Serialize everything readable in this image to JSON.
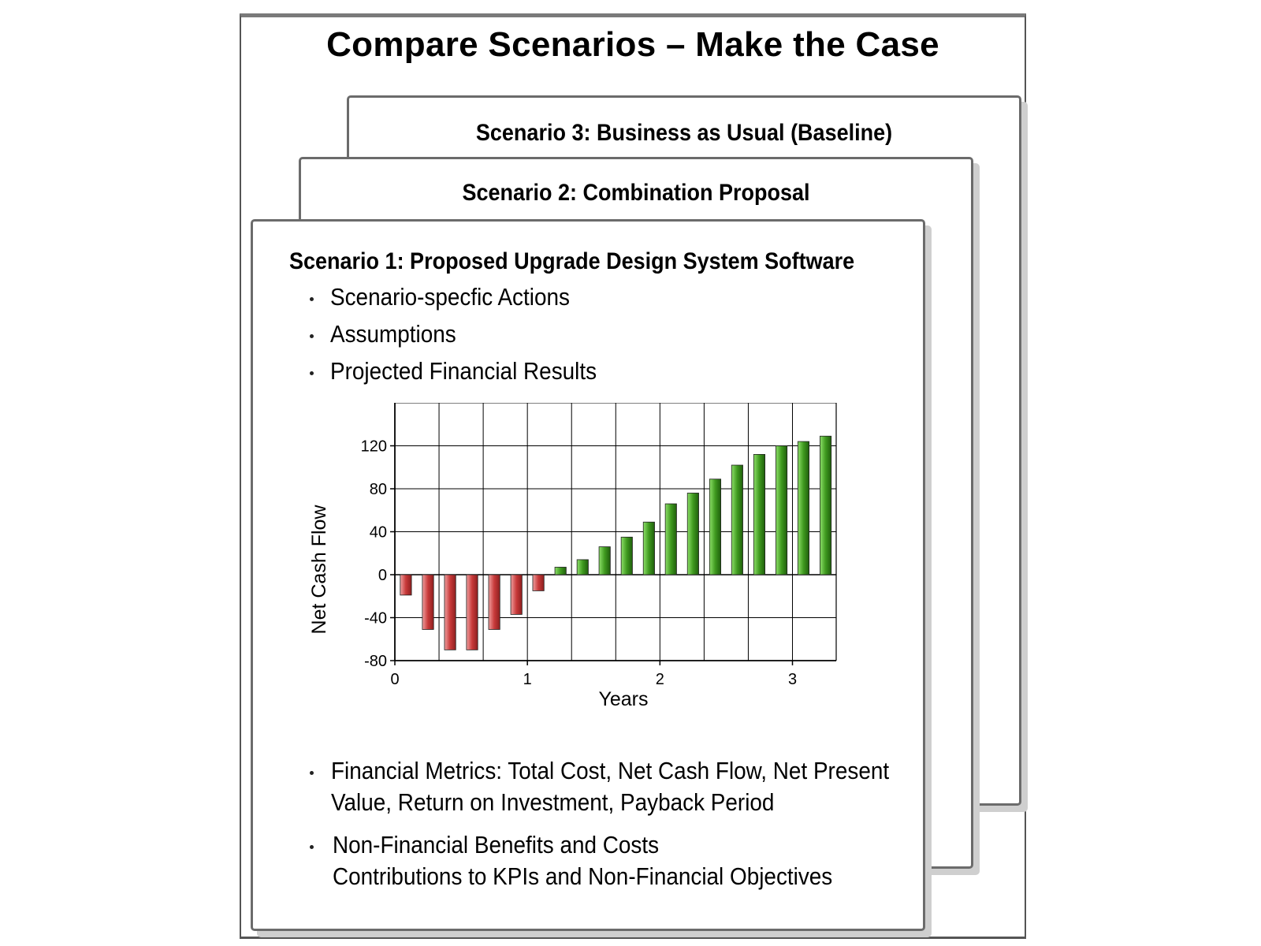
{
  "title": "Compare Scenarios – Make the Case",
  "scenarios": [
    {
      "title": "Scenario 1: Proposed Upgrade Design System Software"
    },
    {
      "title": "Scenario 2: Combination Proposal"
    },
    {
      "title": "Scenario 3: Business as Usual (Baseline)"
    }
  ],
  "bullets_top": [
    "Scenario-specfic Actions",
    "Assumptions",
    "Projected Financial Results"
  ],
  "bullets_bottom": [
    {
      "line1": "Financial Metrics: Total Cost, Net Cash Flow, Net Present",
      "line2": "Value, Return on Investment, Payback Period"
    },
    {
      "line1": "Non-Financial Benefits and Costs",
      "line2": "Contributions to KPIs and Non-Financial Objectives"
    }
  ],
  "colors": {
    "negative": "#c83a3a",
    "positive": "#3f9a1f"
  },
  "chart_data": {
    "type": "bar",
    "xlabel": "Years",
    "ylabel": "Net Cash Flow",
    "xlim": [
      0,
      3.33
    ],
    "ylim": [
      -80,
      160
    ],
    "xticks": [
      0,
      1,
      2,
      3
    ],
    "yticks": [
      120,
      80,
      40,
      0,
      -40,
      -80
    ],
    "grid": true,
    "x": [
      0.083,
      0.25,
      0.417,
      0.583,
      0.75,
      0.917,
      1.083,
      1.25,
      1.417,
      1.583,
      1.75,
      1.917,
      2.083,
      2.25,
      2.417,
      2.583,
      2.75,
      2.917,
      3.083,
      3.25
    ],
    "values": [
      -19,
      -51,
      -70,
      -70,
      -51,
      -37,
      -15,
      7,
      14,
      26,
      35,
      49,
      66,
      76,
      89,
      102,
      112,
      120,
      124,
      129
    ]
  }
}
